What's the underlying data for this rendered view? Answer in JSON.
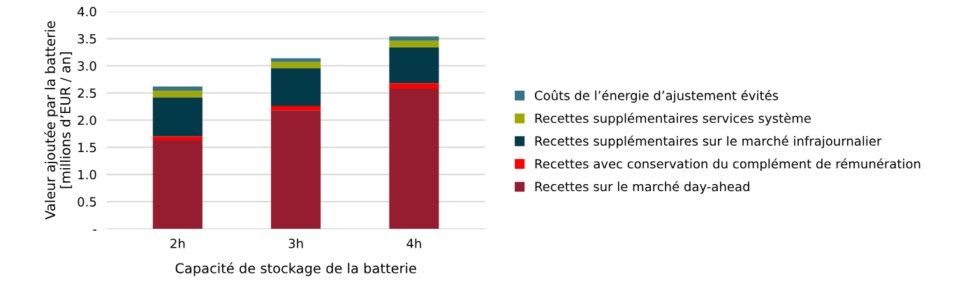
{
  "chart_data": {
    "type": "bar",
    "stacked": true,
    "xlabel": "Capacité de stockage de la batterie",
    "ylabel": "Valeur ajoutée par la batterie\n[millions d’EUR / an]",
    "categories": [
      "2h",
      "3h",
      "4h"
    ],
    "series": [
      {
        "name": "Recettes sur le marché day-ahead",
        "color": "#961c30",
        "values": [
          1.63,
          2.18,
          2.58
        ]
      },
      {
        "name": "Recettes avec conservation du complément de rémunération",
        "color": "#ff0000",
        "values": [
          0.07,
          0.08,
          0.1
        ]
      },
      {
        "name": "Recettes supplémentaires sur le marché infrajournalier",
        "color": "#033a4a",
        "values": [
          0.72,
          0.7,
          0.66
        ]
      },
      {
        "name": "Recettes supplémentaires services système",
        "color": "#a0a800",
        "values": [
          0.12,
          0.11,
          0.12
        ]
      },
      {
        "name": "Coûts de l’énergie d’ajustement évités",
        "color": "#367580",
        "values": [
          0.08,
          0.07,
          0.08
        ]
      }
    ],
    "ylim": [
      0,
      4.0
    ],
    "yticks": [
      {
        "value": 0,
        "label": "-"
      },
      {
        "value": 0.5,
        "label": "0.5"
      },
      {
        "value": 1.0,
        "label": "1.0"
      },
      {
        "value": 1.5,
        "label": "1.5"
      },
      {
        "value": 2.0,
        "label": "2.0"
      },
      {
        "value": 2.5,
        "label": "2.5"
      },
      {
        "value": 3.0,
        "label": "3.0"
      },
      {
        "value": 3.5,
        "label": "3.5"
      },
      {
        "value": 4.0,
        "label": "4.0"
      }
    ],
    "grid": "y",
    "legend": "right"
  }
}
